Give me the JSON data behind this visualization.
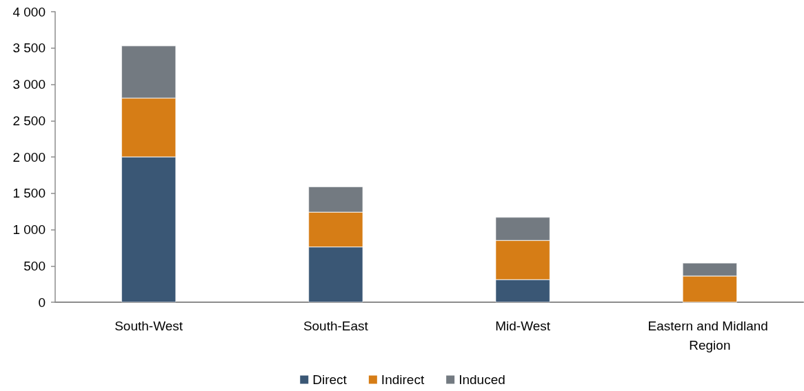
{
  "chart_data": {
    "type": "bar",
    "stacked": true,
    "categories": [
      "South-West",
      "South-East",
      "Mid-West",
      "Eastern and Midland Region"
    ],
    "series": [
      {
        "name": "Direct",
        "color": "#3a5775",
        "values": [
          2000,
          760,
          310,
          0
        ]
      },
      {
        "name": "Indirect",
        "color": "#d67d16",
        "values": [
          810,
          480,
          540,
          360
        ]
      },
      {
        "name": "Induced",
        "color": "#737a81",
        "values": [
          720,
          350,
          320,
          180
        ]
      }
    ],
    "ylim": [
      0,
      4000
    ],
    "yticks": [
      0,
      500,
      {
        "value": 1000,
        "label": "1 000"
      },
      {
        "value": 1500,
        "label": "1 500"
      },
      {
        "value": 2000,
        "label": "2 000"
      },
      {
        "value": 2500,
        "label": "2 500"
      },
      {
        "value": 3000,
        "label": "3 000"
      },
      {
        "value": 3500,
        "label": "3 500"
      },
      {
        "value": 4000,
        "label": "4 000"
      }
    ],
    "grid": false,
    "legend": "bottom"
  }
}
